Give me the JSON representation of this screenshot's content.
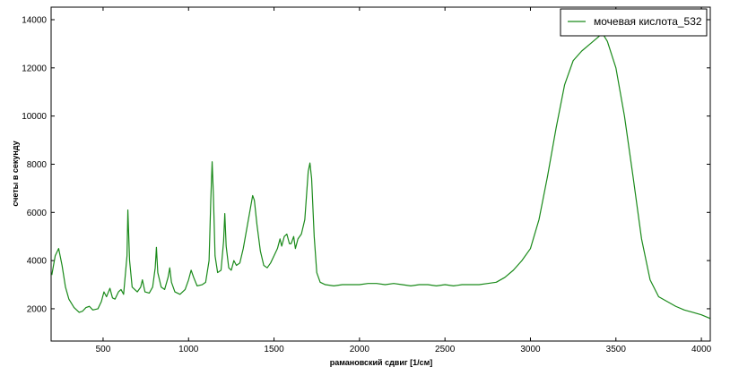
{
  "chart_data": {
    "type": "line",
    "xlabel": "рамановский сдвиг [1/см]",
    "ylabel": "счеты в секунду",
    "x": [
      200,
      220,
      240,
      260,
      280,
      300,
      330,
      360,
      380,
      400,
      420,
      440,
      470,
      490,
      505,
      520,
      540,
      555,
      570,
      590,
      605,
      620,
      640,
      645,
      655,
      670,
      700,
      720,
      730,
      745,
      770,
      790,
      805,
      812,
      820,
      840,
      860,
      880,
      890,
      900,
      920,
      950,
      980,
      1000,
      1015,
      1030,
      1050,
      1080,
      1100,
      1120,
      1130,
      1138,
      1145,
      1155,
      1170,
      1190,
      1205,
      1212,
      1220,
      1235,
      1250,
      1265,
      1280,
      1300,
      1320,
      1340,
      1360,
      1375,
      1385,
      1400,
      1420,
      1440,
      1460,
      1480,
      1500,
      1520,
      1535,
      1545,
      1560,
      1575,
      1590,
      1600,
      1615,
      1625,
      1640,
      1660,
      1680,
      1700,
      1710,
      1720,
      1735,
      1750,
      1770,
      1800,
      1850,
      1900,
      1950,
      2000,
      2050,
      2100,
      2150,
      2200,
      2250,
      2300,
      2350,
      2400,
      2450,
      2500,
      2550,
      2600,
      2650,
      2700,
      2750,
      2800,
      2850,
      2900,
      2950,
      3000,
      3050,
      3100,
      3150,
      3200,
      3250,
      3300,
      3350,
      3400,
      3420,
      3450,
      3500,
      3550,
      3600,
      3650,
      3700,
      3750,
      3800,
      3850,
      3900,
      3950,
      4000,
      4050
    ],
    "series": [
      {
        "name": "мочевая кислота_532",
        "color": "#1a8a1a",
        "values": [
          3400,
          4200,
          4500,
          3800,
          2900,
          2400,
          2050,
          1850,
          1900,
          2050,
          2100,
          1950,
          2000,
          2300,
          2700,
          2500,
          2850,
          2450,
          2400,
          2700,
          2800,
          2600,
          4200,
          6100,
          4000,
          2900,
          2700,
          2900,
          3200,
          2700,
          2650,
          2900,
          3700,
          4550,
          3500,
          2900,
          2800,
          3300,
          3700,
          3100,
          2700,
          2600,
          2800,
          3200,
          3600,
          3300,
          2950,
          3000,
          3100,
          4000,
          6500,
          8100,
          6800,
          4200,
          3500,
          3600,
          4800,
          5950,
          4600,
          3700,
          3600,
          4000,
          3800,
          3900,
          4500,
          5300,
          6100,
          6700,
          6500,
          5500,
          4400,
          3800,
          3700,
          3900,
          4200,
          4500,
          4900,
          4600,
          5000,
          5100,
          4700,
          4700,
          5000,
          4500,
          4900,
          5100,
          5700,
          7700,
          8050,
          7400,
          5000,
          3500,
          3100,
          3000,
          2950,
          3000,
          3000,
          3000,
          3050,
          3050,
          3000,
          3050,
          3000,
          2950,
          3000,
          3000,
          2950,
          3000,
          2950,
          3000,
          3000,
          3000,
          3050,
          3100,
          3300,
          3600,
          4000,
          4500,
          5700,
          7500,
          9500,
          11300,
          12300,
          12700,
          13000,
          13300,
          13450,
          13100,
          12000,
          10000,
          7500,
          4900,
          3200,
          2500,
          2300,
          2100,
          1950,
          1850,
          1750,
          1600
        ]
      }
    ],
    "xlim": [
      196,
      4052
    ],
    "ylim": [
      660,
      14520
    ],
    "xticks": [
      500,
      1000,
      1500,
      2000,
      2500,
      3000,
      3500,
      4000
    ],
    "yticks": [
      2000,
      4000,
      6000,
      8000,
      10000,
      12000,
      14000
    ],
    "grid": false,
    "legend": "top-right"
  }
}
